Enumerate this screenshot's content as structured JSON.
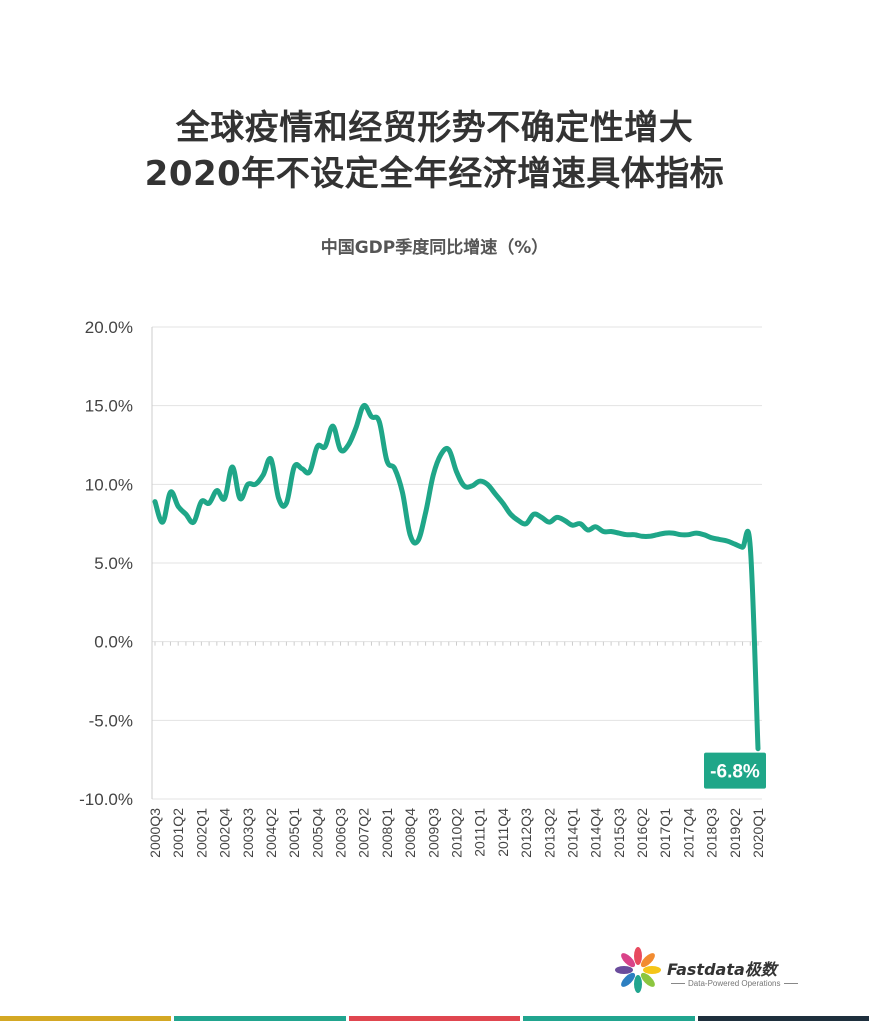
{
  "header": {
    "title_line1": "全球疫情和经贸形势不确定性增大",
    "title_line2": "2020年不设定全年经济增速具体指标"
  },
  "brand": {
    "name": "Fastdata极数",
    "tagline": "Data-Powered Operations"
  },
  "colors": {
    "line": "#1fa688",
    "annotation_bg": "#1fa688",
    "grid": "#e3e3e3",
    "axis": "#cccccc",
    "stripes": [
      "#d4a824",
      "#21a58f",
      "#e04650",
      "#21a58f",
      "#1e2f3d"
    ]
  },
  "chart_data": {
    "type": "line",
    "title": "中国GDP季度同比增速（%）",
    "ylim": [
      -10,
      20
    ],
    "yticks": [
      "20.0%",
      "15.0%",
      "10.0%",
      "5.0%",
      "0.0%",
      "-5.0%",
      "-10.0%"
    ],
    "ytick_values": [
      20,
      15,
      10,
      5,
      0,
      -5,
      -10
    ],
    "grid": true,
    "x_tick_labels": [
      "2000Q3",
      "2001Q2",
      "2002Q1",
      "2002Q4",
      "2003Q3",
      "2004Q2",
      "2005Q1",
      "2005Q4",
      "2006Q3",
      "2007Q2",
      "2008Q1",
      "2008Q4",
      "2009Q3",
      "2010Q2",
      "2011Q1",
      "2011Q4",
      "2012Q3",
      "2013Q2",
      "2014Q1",
      "2014Q4",
      "2015Q3",
      "2016Q2",
      "2017Q1",
      "2017Q4",
      "2018Q3",
      "2019Q2",
      "2020Q1"
    ],
    "x": [
      "2000Q3",
      "2000Q4",
      "2001Q1",
      "2001Q2",
      "2001Q3",
      "2001Q4",
      "2002Q1",
      "2002Q2",
      "2002Q3",
      "2002Q4",
      "2003Q1",
      "2003Q2",
      "2003Q3",
      "2003Q4",
      "2004Q1",
      "2004Q2",
      "2004Q3",
      "2004Q4",
      "2005Q1",
      "2005Q2",
      "2005Q3",
      "2005Q4",
      "2006Q1",
      "2006Q2",
      "2006Q3",
      "2006Q4",
      "2007Q1",
      "2007Q2",
      "2007Q3",
      "2007Q4",
      "2008Q1",
      "2008Q2",
      "2008Q3",
      "2008Q4",
      "2009Q1",
      "2009Q2",
      "2009Q3",
      "2009Q4",
      "2010Q1",
      "2010Q2",
      "2010Q3",
      "2010Q4",
      "2011Q1",
      "2011Q2",
      "2011Q3",
      "2011Q4",
      "2012Q1",
      "2012Q2",
      "2012Q3",
      "2012Q4",
      "2013Q1",
      "2013Q2",
      "2013Q3",
      "2013Q4",
      "2014Q1",
      "2014Q2",
      "2014Q3",
      "2014Q4",
      "2015Q1",
      "2015Q2",
      "2015Q3",
      "2015Q4",
      "2016Q1",
      "2016Q2",
      "2016Q3",
      "2016Q4",
      "2017Q1",
      "2017Q2",
      "2017Q3",
      "2017Q4",
      "2018Q1",
      "2018Q2",
      "2018Q3",
      "2018Q4",
      "2019Q1",
      "2019Q2",
      "2019Q3",
      "2019Q4",
      "2020Q1"
    ],
    "series": [
      {
        "values": [
          8.9,
          7.6,
          9.5,
          8.6,
          8.1,
          7.6,
          8.9,
          8.8,
          9.6,
          9.1,
          11.1,
          9.1,
          10.0,
          10.0,
          10.6,
          11.6,
          9.1,
          8.8,
          11.1,
          11.0,
          10.8,
          12.4,
          12.4,
          13.7,
          12.2,
          12.5,
          13.6,
          15.0,
          14.3,
          14.0,
          11.5,
          11.0,
          9.5,
          6.8,
          6.4,
          8.2,
          10.6,
          11.9,
          12.2,
          10.8,
          9.9,
          9.9,
          10.2,
          10.0,
          9.4,
          8.8,
          8.1,
          7.7,
          7.5,
          8.1,
          7.9,
          7.6,
          7.9,
          7.7,
          7.4,
          7.5,
          7.1,
          7.3,
          7.0,
          7.0,
          6.9,
          6.8,
          6.8,
          6.7,
          6.7,
          6.8,
          6.9,
          6.9,
          6.8,
          6.8,
          6.9,
          6.8,
          6.6,
          6.5,
          6.4,
          6.2,
          6.0,
          6.0,
          -6.8
        ]
      }
    ],
    "annotation": {
      "x": "2020Q1",
      "value": -6.8,
      "text": "-6.8%"
    }
  }
}
